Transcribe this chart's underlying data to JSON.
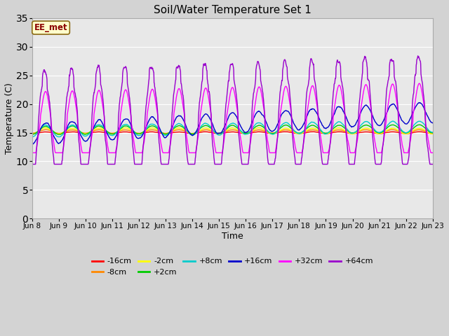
{
  "title": "Soil/Water Temperature Set 1",
  "xlabel": "Time",
  "ylabel": "Temperature (C)",
  "ylim": [
    0,
    35
  ],
  "yticks": [
    0,
    5,
    10,
    15,
    20,
    25,
    30,
    35
  ],
  "fig_bg_color": "#d3d3d3",
  "plot_bg_color": "#e8e8e8",
  "annotation_text": "EE_met",
  "annotation_bg": "#ffffcc",
  "annotation_border": "#8b6914",
  "annotation_text_color": "#8b0000",
  "series_colors": {
    "-16cm": "#ff0000",
    "-8cm": "#ff8800",
    "-2cm": "#ffff00",
    "+2cm": "#00cc00",
    "+8cm": "#00cccc",
    "+16cm": "#0000cc",
    "+32cm": "#ff00ff",
    "+64cm": "#9900cc"
  },
  "x_labels": [
    "Jun 8",
    "Jun 9",
    "Jun 10",
    "Jun 11",
    "Jun 12",
    "Jun 13",
    "Jun 14",
    "Jun 15",
    "Jun 16",
    "Jun 17",
    "Jun 18",
    "Jun 19",
    "Jun 20",
    "Jun 21",
    "Jun 22",
    "Jun 23"
  ],
  "x_ticks": [
    0,
    1,
    2,
    3,
    4,
    5,
    6,
    7,
    8,
    9,
    10,
    11,
    12,
    13,
    14,
    15
  ],
  "num_points": 1440,
  "seed": 42
}
